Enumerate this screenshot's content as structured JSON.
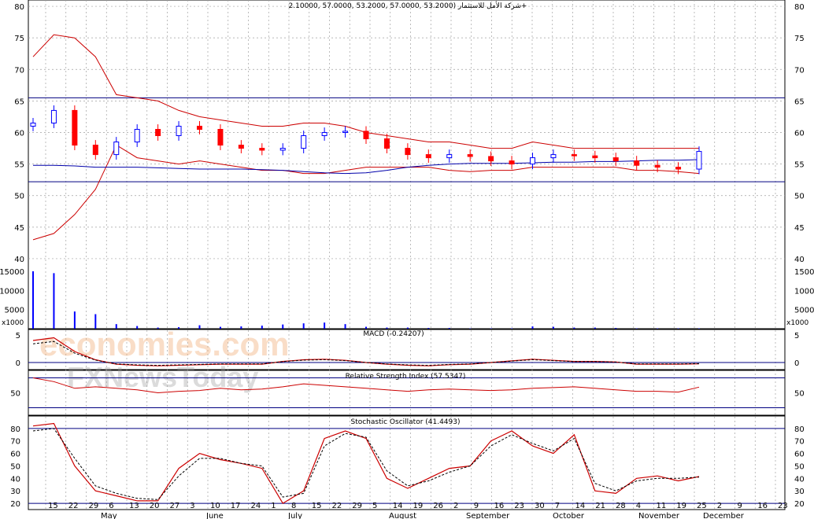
{
  "header": {
    "title": "شركة الأمل للاستثمار (53.2000 ,57.0000 ,53.2000 ,57.0000 ,2.10000+"
  },
  "colors": {
    "up": "#0000ff",
    "down": "#ff0000",
    "band": "#cc0000",
    "grid": "#a0a0a0",
    "hline": "#000080"
  },
  "watermark": {
    "line1": "economies.com",
    "line2": "FXNewsToday"
  },
  "panels": {
    "price": {
      "ticks": [
        40,
        45,
        50,
        55,
        60,
        65,
        70,
        75,
        80
      ],
      "hlines": [
        65.5,
        52.2
      ]
    },
    "volume": {
      "ticks": [
        5000,
        10000,
        15000
      ],
      "unit": "x1000"
    },
    "macd": {
      "label": "MACD (-0.24207)",
      "ticks": [
        0,
        5
      ]
    },
    "rsi": {
      "label": "Relative Strength Index (57.5347)",
      "ticks": [
        50
      ]
    },
    "stoch": {
      "label": "Stochastic Oscillator (41.4493)",
      "ticks": [
        20,
        30,
        40,
        50,
        60,
        70,
        80
      ]
    }
  },
  "xaxis": {
    "days": [
      "15",
      "22",
      "29",
      "6",
      "13",
      "20",
      "27",
      "3",
      "10",
      "17",
      "24",
      "1",
      "8",
      "15",
      "22",
      "29",
      "5",
      "14",
      "19",
      "26",
      "2",
      "9",
      "16",
      "23",
      "30",
      "7",
      "14",
      "21",
      "28",
      "4",
      "11",
      "19",
      "25",
      "2",
      "9",
      "16",
      "23"
    ],
    "months": [
      "May",
      "June",
      "July",
      "August",
      "September",
      "October",
      "November",
      "December"
    ]
  },
  "chart_data": {
    "type": "candlestick",
    "x_days": [
      "15",
      "22",
      "29",
      "6",
      "13",
      "20",
      "27",
      "3",
      "10",
      "17",
      "24",
      "1",
      "8",
      "15",
      "22",
      "29",
      "5",
      "14",
      "19",
      "26",
      "2",
      "9",
      "16",
      "23",
      "30",
      "7",
      "14",
      "21",
      "28",
      "4",
      "11",
      "19",
      "25"
    ],
    "close": [
      61.5,
      63.5,
      58,
      56.5,
      58.5,
      60.5,
      59.5,
      61,
      60.5,
      58,
      57.5,
      57.2,
      57.5,
      59.5,
      60,
      60.2,
      59,
      57.5,
      56.5,
      56,
      56.5,
      56.2,
      55.5,
      55,
      56,
      56.5,
      56.3,
      56,
      55.5,
      54.8,
      54.5,
      54.2,
      57
    ],
    "bollinger_upper": [
      72,
      75.5,
      75,
      72,
      66,
      65.5,
      65,
      63.5,
      62.5,
      62,
      61.5,
      61,
      61,
      61.5,
      61.5,
      61,
      60,
      59.5,
      59,
      58.5,
      58.5,
      58,
      57.5,
      57.5,
      58.5,
      58,
      57.5,
      57.5,
      57.5,
      57.5,
      57.5,
      57.5,
      57.5
    ],
    "bollinger_lower": [
      43,
      44,
      47,
      51,
      58,
      56,
      55.5,
      55,
      55.5,
      55,
      54.5,
      54,
      54,
      53.5,
      53.5,
      54,
      54.5,
      54.5,
      54.5,
      54.5,
      54,
      53.8,
      54,
      54,
      54.5,
      54.5,
      54.5,
      54.5,
      54.5,
      54,
      54,
      53.8,
      53.5
    ],
    "moving_average": [
      54.8,
      54.8,
      54.7,
      54.5,
      54.5,
      54.5,
      54.4,
      54.3,
      54.2,
      54.2,
      54.2,
      54.1,
      54,
      53.8,
      53.6,
      53.5,
      53.6,
      54,
      54.5,
      54.8,
      55,
      55.1,
      55.1,
      55.1,
      55.2,
      55.3,
      55.3,
      55.4,
      55.4,
      55.5,
      55.6,
      55.6,
      55.7
    ],
    "volume_thousands": [
      15000,
      14500,
      4500,
      3800,
      1200,
      700,
      300,
      400,
      900,
      500,
      600,
      800,
      1100,
      1400,
      1600,
      1200,
      500,
      300,
      300,
      200,
      200,
      100,
      100,
      100,
      600,
      500,
      300,
      300,
      200,
      100,
      100,
      100,
      100
    ],
    "macd": [
      4,
      4.5,
      2,
      0.5,
      -0.3,
      -0.5,
      -0.6,
      -0.5,
      -0.4,
      -0.3,
      -0.3,
      -0.3,
      0.2,
      0.5,
      0.6,
      0.4,
      0,
      -0.3,
      -0.5,
      -0.6,
      -0.4,
      -0.3,
      0,
      0.3,
      0.6,
      0.4,
      0.2,
      0.2,
      0.1,
      -0.3,
      -0.3,
      -0.3,
      -0.24207
    ],
    "rsi": [
      70,
      65,
      56,
      58,
      56,
      54,
      50,
      52,
      53,
      56,
      54,
      55,
      58,
      62,
      60,
      58,
      56,
      54,
      52,
      54,
      55,
      54,
      53,
      54,
      56,
      57,
      58,
      56,
      54,
      52,
      52,
      51,
      57.5347
    ],
    "stochastic_k": [
      82,
      84,
      50,
      30,
      26,
      22,
      22,
      48,
      60,
      55,
      52,
      48,
      20,
      30,
      72,
      78,
      72,
      40,
      32,
      40,
      48,
      50,
      70,
      78,
      66,
      60,
      75,
      30,
      28,
      40,
      42,
      38,
      41.4493
    ],
    "stochastic_d": [
      78,
      80,
      56,
      34,
      28,
      24,
      23,
      42,
      56,
      56,
      52,
      50,
      25,
      28,
      66,
      76,
      73,
      46,
      34,
      38,
      45,
      50,
      66,
      75,
      68,
      62,
      72,
      36,
      30,
      38,
      40,
      40,
      41
    ],
    "ylim_price": [
      38,
      82
    ],
    "ylim_rsi": [
      20,
      80
    ],
    "ylim_stoch": [
      15,
      90
    ]
  }
}
